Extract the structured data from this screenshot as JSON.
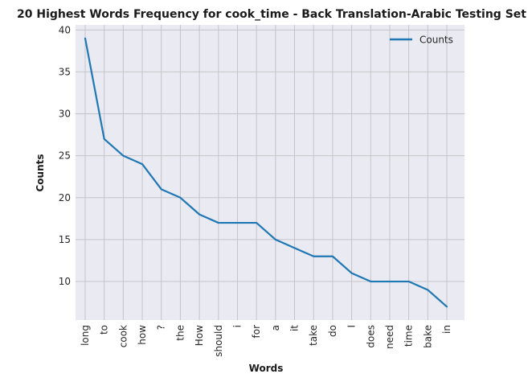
{
  "chart_data": {
    "type": "line",
    "title": "20 Highest Words Frequency for cook_time - Back Translation-Arabic Testing Set",
    "xlabel": "Words",
    "ylabel": "Counts",
    "categories": [
      "long",
      "to",
      "cook",
      "how",
      "?",
      "the",
      "How",
      "should",
      "i",
      "for",
      "a",
      "it",
      "take",
      "do",
      "I",
      "does",
      "need",
      "time",
      "bake",
      "in"
    ],
    "series": [
      {
        "name": "Counts",
        "values": [
          39,
          27,
          25,
          24,
          21,
          20,
          18,
          17,
          17,
          17,
          15,
          14,
          13,
          13,
          11,
          10,
          10,
          10,
          9,
          7
        ]
      }
    ],
    "ylim": [
      5.4,
      40.6
    ],
    "yticks": [
      10,
      15,
      20,
      25,
      30,
      35,
      40
    ],
    "grid": true,
    "legend": "top-right",
    "colors": {
      "series": "#1f77b4",
      "plot_bg": "#eaeaf2",
      "grid": "#c4c4c8"
    }
  }
}
